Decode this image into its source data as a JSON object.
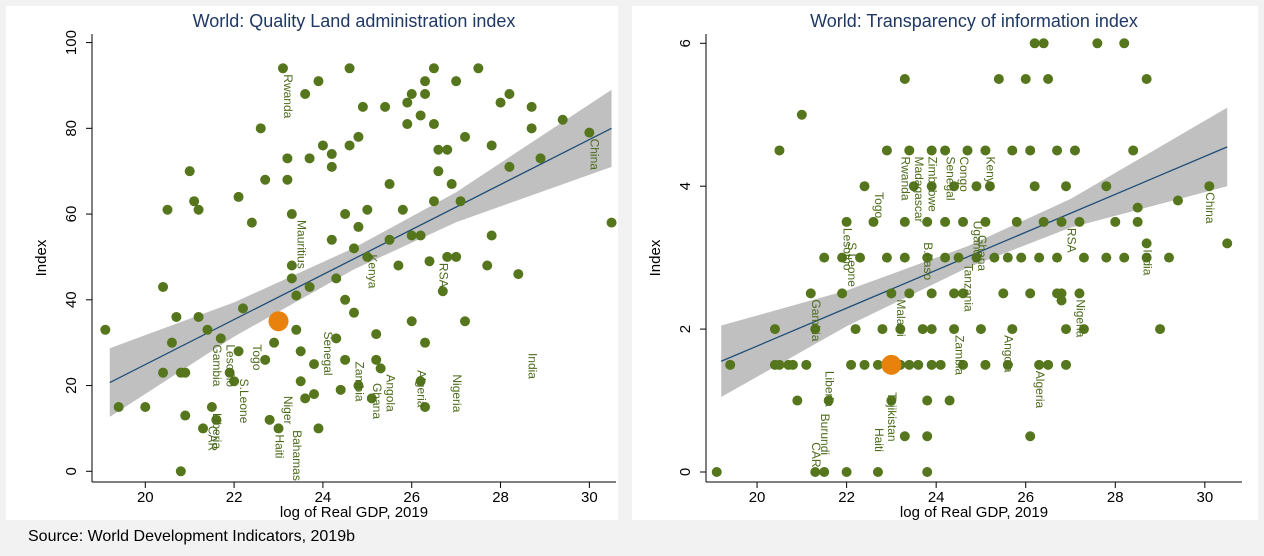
{
  "source": "Source: World Development Indicators, 2019b",
  "chart_data": [
    {
      "type": "scatter",
      "title": "World: Quality Land administration index",
      "x_label": "log of Real GDP, 2019",
      "y_label": "Index",
      "xlim": [
        18.8,
        30.6
      ],
      "ylim": [
        -2.5,
        102
      ],
      "xticks": [
        20,
        22,
        24,
        26,
        28,
        30
      ],
      "yticks": [
        0,
        20,
        40,
        60,
        80,
        100
      ],
      "series": [
        {
          "color": "#55761c",
          "x": [
            19.1,
            19.4,
            20,
            20.4,
            20.4,
            20.5,
            20.6,
            20.7,
            20.8,
            20.8,
            20.9,
            20.9,
            21,
            21.1,
            21.2,
            21.2,
            21.3,
            21.4,
            21.5,
            21.6,
            21.7,
            21.9,
            22,
            22.1,
            22.1,
            22.2,
            22.4,
            22.6,
            22.7,
            22.7,
            22.8,
            22.9,
            23,
            23.1,
            23.2,
            23.2,
            23.3,
            23.3,
            23.3,
            23.4,
            23.4,
            23.5,
            23.5,
            23.6,
            23.6,
            23.7,
            23.7,
            23.8,
            23.8,
            23.9,
            23.9,
            24,
            24.2,
            24.2,
            24.2,
            24.3,
            24.3,
            24.4,
            24.5,
            24.5,
            24.5,
            24.6,
            24.6,
            24.7,
            24.7,
            24.8,
            24.8,
            24.8,
            24.9,
            25,
            25,
            25.1,
            25.2,
            25.2,
            25.3,
            25.4,
            25.5,
            25.5,
            25.7,
            25.8,
            25.9,
            25.9,
            26,
            26,
            26,
            26.2,
            26.2,
            26.2,
            26.3,
            26.3,
            26.3,
            26.3,
            26.4,
            26.5,
            26.5,
            26.5,
            26.6,
            26.6,
            26.7,
            26.8,
            26.8,
            26.9,
            27,
            27,
            27.1,
            27.2,
            27.2,
            27.5,
            27.7,
            27.8,
            27.8,
            28,
            28.2,
            28.2,
            28.4,
            28.7,
            28.7,
            28.9,
            29.4,
            30,
            30.5
          ],
          "values": [
            33,
            15,
            15,
            43,
            23,
            61,
            30,
            36,
            23,
            0,
            13,
            23,
            70,
            63,
            36,
            61,
            10,
            33,
            15,
            12,
            31,
            23,
            21,
            64,
            28,
            38,
            58,
            80,
            68,
            26,
            12,
            30,
            10,
            94,
            73,
            68,
            60,
            48,
            45,
            41,
            33,
            28,
            21,
            88,
            17,
            73,
            43,
            25,
            18,
            10,
            91,
            76,
            74,
            71,
            54,
            45,
            31,
            19,
            40,
            26,
            60,
            94,
            76,
            52,
            37,
            57,
            78,
            20,
            85,
            50,
            61,
            17,
            26,
            32,
            24,
            85,
            67,
            54,
            48,
            61,
            86,
            81,
            88,
            55,
            35,
            55,
            21,
            83,
            15,
            88,
            91,
            30,
            49,
            94,
            63,
            81,
            75,
            70,
            42,
            50,
            75,
            67,
            50,
            91,
            63,
            78,
            35,
            94,
            48,
            76,
            55,
            86,
            71,
            88,
            46,
            85,
            80,
            73,
            82,
            79,
            58
          ]
        }
      ],
      "highlight": {
        "x": 23,
        "y": 35,
        "color": "#e8820c"
      },
      "fit": {
        "color": "#1f4e79",
        "x": [
          19.2,
          30.5
        ],
        "values": [
          20.7,
          80
        ]
      },
      "band": {
        "color": "#c0c0c0",
        "x": [
          19.2,
          22,
          24.7,
          27,
          30.5
        ],
        "lower": [
          12.7,
          31.4,
          47.1,
          58.1,
          71
        ],
        "upper": [
          28.7,
          39.4,
          52.1,
          65.1,
          89
        ]
      },
      "labels": [
        {
          "text": "Rwanda",
          "x": 23.2,
          "y": 94
        },
        {
          "text": "China",
          "x": 30.1,
          "y": 79
        },
        {
          "text": "Mauritius",
          "x": 23.5,
          "y": 60
        },
        {
          "text": "RSA",
          "x": 26.7,
          "y": 50
        },
        {
          "text": "Kenya",
          "x": 25.1,
          "y": 52
        },
        {
          "text": "Togo",
          "x": 22.5,
          "y": 31
        },
        {
          "text": "Gambia",
          "x": 21.6,
          "y": 31
        },
        {
          "text": "Lesotho",
          "x": 21.9,
          "y": 31
        },
        {
          "text": "S.Leone",
          "x": 22.2,
          "y": 23
        },
        {
          "text": "Liberia",
          "x": 21.6,
          "y": 15
        },
        {
          "text": "CAR",
          "x": 21.5,
          "y": 12
        },
        {
          "text": "India",
          "x": 28.7,
          "y": 29
        },
        {
          "text": "Nigeria",
          "x": 27,
          "y": 24
        },
        {
          "text": "Algeria",
          "x": 26.2,
          "y": 25
        },
        {
          "text": "Angola",
          "x": 25.5,
          "y": 24
        },
        {
          "text": "Senegal",
          "x": 24.1,
          "y": 34
        },
        {
          "text": "Zambia",
          "x": 24.8,
          "y": 27
        },
        {
          "text": "Ghana",
          "x": 25.2,
          "y": 22
        },
        {
          "text": "Haiti",
          "x": 23,
          "y": 10
        },
        {
          "text": "Bahamas",
          "x": 23.4,
          "y": 11
        },
        {
          "text": "Niger",
          "x": 23.2,
          "y": 19
        }
      ]
    },
    {
      "type": "scatter",
      "title": "World: Transparency of information index",
      "x_label": "log of Real GDP, 2019",
      "y_label": "Index",
      "xlim": [
        18.86,
        30.83
      ],
      "ylim": [
        -0.14,
        6.13
      ],
      "xticks": [
        20,
        22,
        24,
        26,
        28,
        30
      ],
      "yticks": [
        0,
        2,
        4,
        6
      ],
      "series": [
        {
          "color": "#55761c",
          "x": [
            19.4,
            20.4,
            20.5,
            20.7,
            20.8,
            21.1,
            22.1,
            22.4,
            22.7,
            23,
            23.2,
            23.4,
            23.6,
            23.9,
            24.1,
            24.6,
            25.1,
            25.6,
            26.3,
            26.5,
            26.9,
            19.1,
            21.3,
            21.5,
            22,
            22.7,
            23.8,
            23.3,
            23.8,
            26.1,
            20.9,
            21.6,
            23,
            23.8,
            24.3,
            20.4,
            21.3,
            22.2,
            22.8,
            23.2,
            23.7,
            23.9,
            24.4,
            25,
            25.7,
            26.9,
            27.3,
            29,
            21.2,
            21.9,
            23,
            23.4,
            23.9,
            24.4,
            24.6,
            25.5,
            26.1,
            26.8,
            27.2,
            26.7,
            21.5,
            21.9,
            22.3,
            22.9,
            23.3,
            23.8,
            24.2,
            24.5,
            24.9,
            25.3,
            25.6,
            25.9,
            26.3,
            26.7,
            27.3,
            27.8,
            28.2,
            28.7,
            29.2,
            22,
            22.6,
            23.3,
            23.8,
            24.2,
            24.6,
            25.1,
            25.8,
            26.4,
            26.8,
            27.2,
            28,
            28.5,
            22.4,
            23.5,
            23.9,
            24.4,
            24.9,
            25.2,
            26.2,
            26.9,
            27.8,
            30.1,
            20.5,
            22.9,
            23.4,
            23.9,
            24.2,
            24.7,
            25.1,
            25.7,
            26.1,
            26.7,
            27.1,
            28.4,
            21,
            23.3,
            25.4,
            26,
            26.5,
            28.7,
            26.2,
            26.4,
            27.6,
            28.2,
            29.4,
            28.5,
            30.5,
            28.7,
            26.8
          ],
          "values": [
            1.5,
            1.5,
            1.5,
            1.5,
            1.5,
            1.5,
            1.5,
            1.5,
            1.5,
            1.5,
            1.5,
            1.5,
            1.5,
            1.5,
            1.5,
            1.5,
            1.5,
            1.5,
            1.5,
            1.5,
            1.5,
            0,
            0,
            0,
            0,
            0,
            0,
            0.5,
            0.5,
            0.5,
            1,
            1,
            1,
            1,
            1,
            2,
            2,
            2,
            2,
            2,
            2,
            2,
            2,
            2,
            2,
            2,
            2,
            2,
            2.5,
            2.5,
            2.5,
            2.5,
            2.5,
            2.5,
            2.5,
            2.5,
            2.5,
            2.5,
            2.5,
            2.5,
            3,
            3,
            3,
            3,
            3,
            3,
            3,
            3,
            3,
            3,
            3,
            3,
            3,
            3,
            3,
            3,
            3,
            3,
            3,
            3.5,
            3.5,
            3.5,
            3.5,
            3.5,
            3.5,
            3.5,
            3.5,
            3.5,
            3.5,
            3.5,
            3.5,
            3.5,
            4,
            4,
            4,
            4,
            4,
            4,
            4,
            4,
            4,
            4,
            4.5,
            4.5,
            4.5,
            4.5,
            4.5,
            4.5,
            4.5,
            4.5,
            4.5,
            4.5,
            4.5,
            4.5,
            5,
            5.5,
            5.5,
            5.5,
            5.5,
            5.5,
            6,
            6,
            6,
            6,
            3.8,
            3.7,
            3.2,
            3.2,
            2.4
          ]
        }
      ],
      "highlight": {
        "x": 23,
        "y": 1.5,
        "color": "#e8820c"
      },
      "fit": {
        "color": "#1f4e79",
        "x": [
          19.2,
          30.5
        ],
        "values": [
          1.55,
          4.55
        ]
      },
      "band": {
        "color": "#c0c0c0",
        "x": [
          19.2,
          22,
          24.7,
          27,
          30.5
        ],
        "lower": [
          1.05,
          2.04,
          2.86,
          3.42,
          4.0
        ],
        "upper": [
          2.05,
          2.54,
          3.16,
          3.82,
          5.1
        ]
      },
      "labels": [
        {
          "text": "China",
          "x": 30.1,
          "y": 4
        },
        {
          "text": "India",
          "x": 28.7,
          "y": 3.2
        },
        {
          "text": "RSA",
          "x": 27,
          "y": 3.5
        },
        {
          "text": "Nigeria",
          "x": 27.2,
          "y": 2.5
        },
        {
          "text": "Algeria",
          "x": 26.3,
          "y": 1.5
        },
        {
          "text": "Angola",
          "x": 25.6,
          "y": 2
        },
        {
          "text": "Kenya",
          "x": 25.2,
          "y": 4.5
        },
        {
          "text": "Uganda",
          "x": 24.9,
          "y": 3.6
        },
        {
          "text": "Tanzania",
          "x": 24.7,
          "y": 3
        },
        {
          "text": "Ghana",
          "x": 25,
          "y": 3.4
        },
        {
          "text": "Congo",
          "x": 24.6,
          "y": 4.5
        },
        {
          "text": "Senegal",
          "x": 24.3,
          "y": 4.5
        },
        {
          "text": "Zimbabwe",
          "x": 23.9,
          "y": 4.5
        },
        {
          "text": "Rwanda",
          "x": 23.3,
          "y": 4.5
        },
        {
          "text": "Madagascar",
          "x": 23.6,
          "y": 4.5
        },
        {
          "text": "Malawi",
          "x": 23.2,
          "y": 2.5
        },
        {
          "text": "Togo",
          "x": 22.7,
          "y": 4
        },
        {
          "text": "Lesotho",
          "x": 22,
          "y": 3.5
        },
        {
          "text": "S.Leone",
          "x": 22.1,
          "y": 3.3
        },
        {
          "text": "Gambia",
          "x": 21.3,
          "y": 2.5
        },
        {
          "text": "Liberia",
          "x": 21.6,
          "y": 1.5
        },
        {
          "text": "Burundi",
          "x": 21.5,
          "y": 0.9
        },
        {
          "text": "CAR",
          "x": 21.3,
          "y": 0.5
        },
        {
          "text": "Haiti",
          "x": 22.7,
          "y": 0.7
        },
        {
          "text": "Zambia",
          "x": 24.5,
          "y": 2
        },
        {
          "text": "B.Faso",
          "x": 23.8,
          "y": 3.3
        },
        {
          "text": "Tajikistan",
          "x": 23,
          "y": 1.2
        }
      ]
    }
  ]
}
